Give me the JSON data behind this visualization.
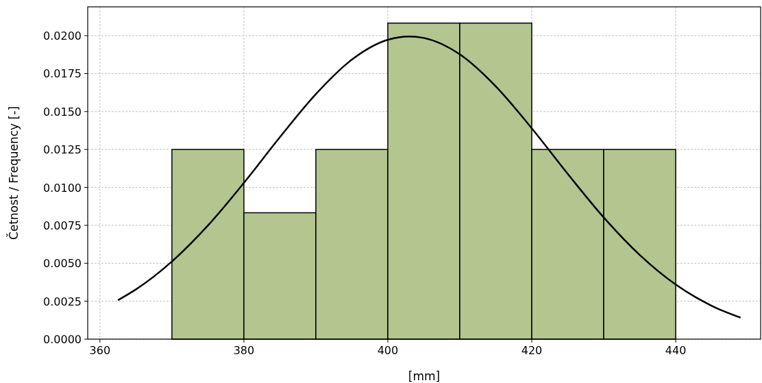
{
  "chart_data": {
    "type": "histogram",
    "xlabel": "[mm]",
    "ylabel": "Četnost / Frequency [-]",
    "xlim": [
      358.3,
      451.8
    ],
    "ylim": [
      0,
      0.0219
    ],
    "xticks": [
      360,
      380,
      400,
      420,
      440
    ],
    "yticks": [
      {
        "value": 0,
        "label": "0.0000"
      },
      {
        "value": 0.0025,
        "label": "0.0025"
      },
      {
        "value": 0.005,
        "label": "0.0050"
      },
      {
        "value": 0.0075,
        "label": "0.0075"
      },
      {
        "value": 0.01,
        "label": "0.0100"
      },
      {
        "value": 0.0125,
        "label": "0.0125"
      },
      {
        "value": 0.015,
        "label": "0.0150"
      },
      {
        "value": 0.0175,
        "label": "0.0175"
      },
      {
        "value": 0.02,
        "label": "0.0200"
      }
    ],
    "grid": true,
    "series": [
      {
        "color": "#b3c68f",
        "bins": [
          370,
          380,
          390,
          400,
          410,
          420,
          430,
          440
        ],
        "values": [
          0.0125,
          0.00833,
          0.0125,
          0.02083,
          0.02083,
          0.0125,
          0.0125
        ]
      },
      {
        "type": "line",
        "color": "#000000",
        "x": [
          362.5,
          365,
          370,
          375,
          380,
          385,
          390,
          395,
          400,
          403,
          405,
          410,
          415,
          420,
          425,
          430,
          435,
          440,
          445,
          449
        ],
        "values": [
          0.00257,
          0.00328,
          0.00512,
          0.00749,
          0.0103,
          0.01331,
          0.01615,
          0.01842,
          0.01973,
          0.01995,
          0.01985,
          0.01877,
          0.01666,
          0.0139,
          0.01089,
          0.00802,
          0.00555,
          0.0036,
          0.0022,
          0.00142
        ]
      }
    ]
  }
}
